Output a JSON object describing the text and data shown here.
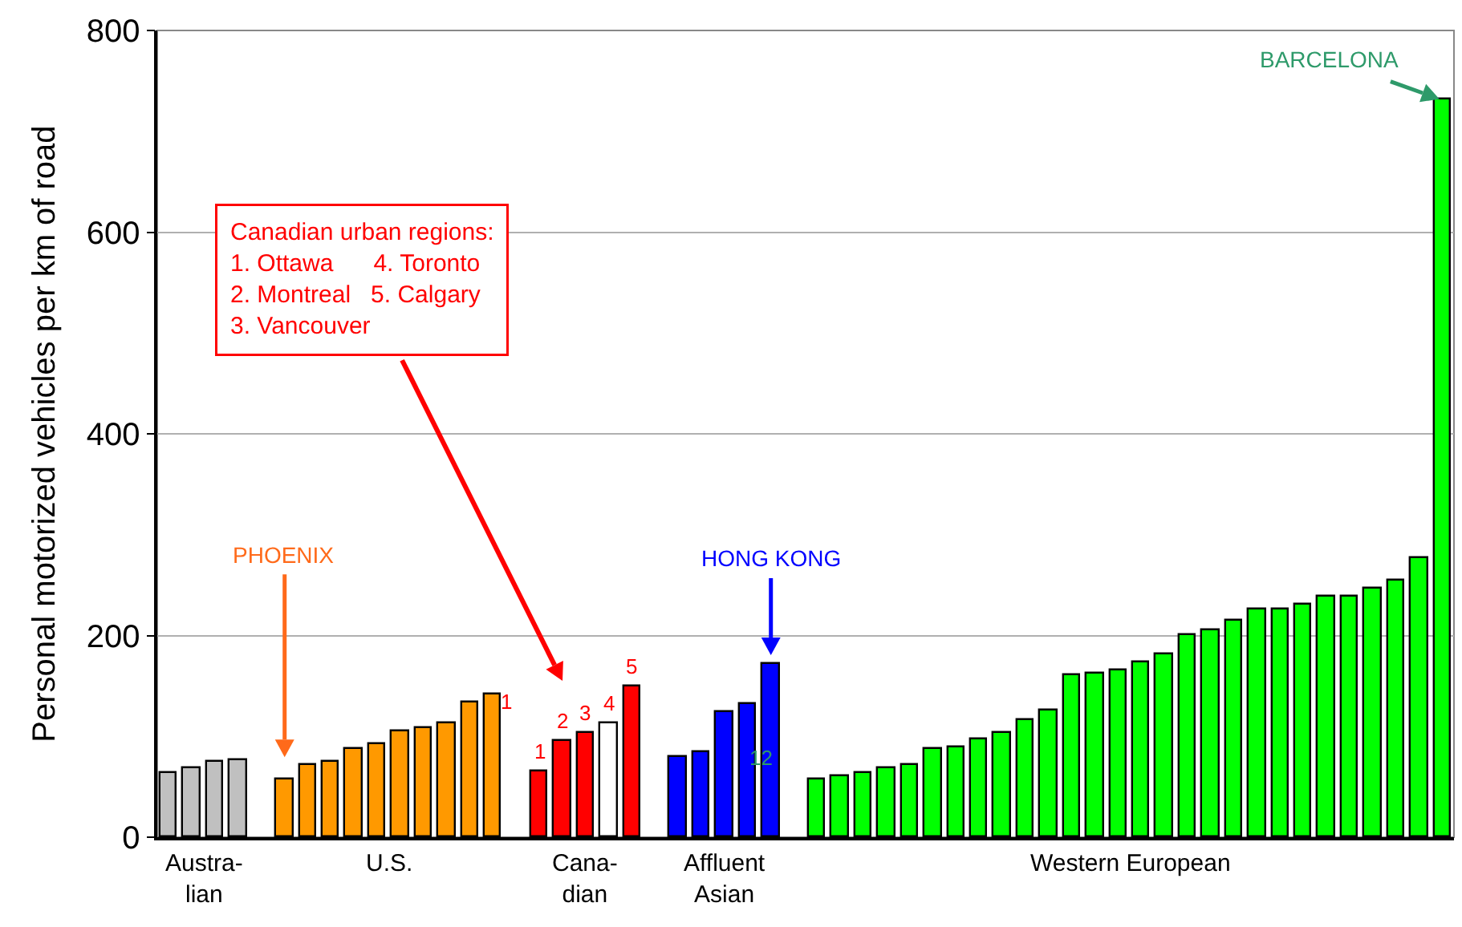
{
  "chart_data": {
    "type": "bar",
    "ylabel": "Personal motorized vehicles per km of road",
    "categories": [
      null,
      null,
      null,
      null,
      null,
      null,
      null,
      null,
      null,
      null,
      null,
      null,
      null,
      null,
      null,
      null,
      null,
      null,
      null,
      null,
      null,
      null,
      null,
      null,
      null,
      null,
      null,
      null,
      null,
      null,
      null,
      null,
      null,
      null,
      null,
      null,
      null,
      null,
      null,
      null,
      null,
      null,
      null,
      null,
      null,
      null,
      null,
      null,
      null,
      null,
      null,
      null,
      null,
      null,
      null,
      null
    ],
    "values": [
      63,
      68,
      74,
      76,
      null,
      57,
      71,
      74,
      87,
      92,
      105,
      108,
      113,
      134,
      142,
      null,
      66,
      95,
      103,
      113,
      150,
      null,
      79,
      84,
      124,
      132,
      171,
      null,
      58,
      61,
      63,
      68,
      71,
      87,
      89,
      97,
      103,
      116,
      126,
      160,
      163,
      166,
      174,
      182,
      200,
      205,
      215,
      226,
      226,
      231,
      239,
      239,
      247,
      255,
      276,
      731
    ],
    "colors": [
      "#c0c0c0",
      "#c0c0c0",
      "#c0c0c0",
      "#c0c0c0",
      null,
      "#ff9900",
      "#ff9900",
      "#ff9900",
      "#ff9900",
      "#ff9900",
      "#ff9900",
      "#ff9900",
      "#ff9900",
      "#ff9900",
      "#ff9900",
      null,
      "#ff0000",
      "#ff0000",
      "#ff0000",
      "#ffffff",
      "#ff0000",
      null,
      "#0000ff",
      "#0000ff",
      "#0000ff",
      "#0000ff",
      "#0000ff",
      null,
      "#00ff00",
      "#00ff00",
      "#00ff00",
      "#00ff00",
      "#00ff00",
      "#00ff00",
      "#00ff00",
      "#00ff00",
      "#00ff00",
      "#00ff00",
      "#00ff00",
      "#00ff00",
      "#00ff00",
      "#00ff00",
      "#00ff00",
      "#00ff00",
      "#00ff00",
      "#00ff00",
      "#00ff00",
      "#00ff00",
      "#00ff00",
      "#00ff00",
      "#00ff00",
      "#00ff00",
      "#00ff00",
      "#00ff00",
      "#00ff00",
      "#00ff00"
    ],
    "ylim": [
      0,
      800
    ],
    "yticks": [
      0,
      200,
      400,
      600,
      800
    ],
    "grid": "y",
    "annotations": [
      "PHOENIX",
      "HONG KONG",
      "BARCELONA",
      "Canadian urban regions:\n1. Ottawa      4. Toronto\n2. Montreal   5. Calgary\n3. Vancouver",
      "1",
      "12",
      "1",
      "2",
      "3",
      "4",
      "5",
      "Austra-\nlian",
      "U.S.",
      "Cana-\ndian",
      "Affluent\nAsian",
      "Western European"
    ]
  }
}
